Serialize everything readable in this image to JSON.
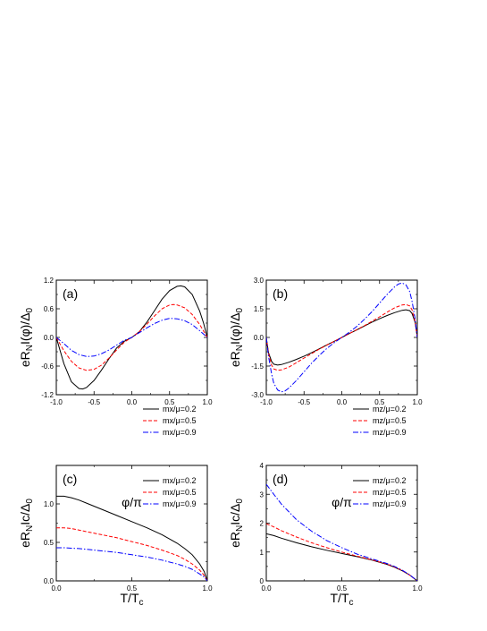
{
  "chart_data": [
    {
      "type": "line",
      "panel_label": "(a)",
      "xlabel": "φ/π",
      "ylabel": "eR_NI(φ)/Δ_0",
      "ylabel_parts": {
        "main": "eR",
        "sub1": "N",
        "mid": "I(φ)/Δ",
        "sub2": "0"
      },
      "xlim": [
        -1.0,
        1.0
      ],
      "ylim": [
        -1.2,
        1.2
      ],
      "xticks": [
        "-1.0",
        "-0.5",
        "0.0",
        "0.5",
        "1.0"
      ],
      "xtick_values": [
        -1.0,
        -0.5,
        0.0,
        0.5,
        1.0
      ],
      "yticks": [
        "-1.2",
        "-0.6",
        "0.0",
        "0.6",
        "1.2"
      ],
      "ytick_values": [
        -1.2,
        -0.6,
        0.0,
        0.6,
        1.2
      ],
      "legend_position": "lower-right",
      "series": [
        {
          "name": "mx/μ=0.2",
          "color": "#000000",
          "dash": "solid",
          "x": [
            -1.0,
            -0.9,
            -0.8,
            -0.7,
            -0.65,
            -0.6,
            -0.5,
            -0.4,
            -0.3,
            -0.2,
            -0.1,
            0.0,
            0.1,
            0.2,
            0.3,
            0.4,
            0.5,
            0.6,
            0.65,
            0.7,
            0.8,
            0.9,
            0.95,
            1.0
          ],
          "y": [
            0.0,
            -0.55,
            -0.93,
            -1.07,
            -1.08,
            -1.05,
            -0.9,
            -0.68,
            -0.44,
            -0.22,
            -0.08,
            0.0,
            0.12,
            0.32,
            0.56,
            0.8,
            0.98,
            1.07,
            1.08,
            1.06,
            0.9,
            0.55,
            0.3,
            0.0
          ]
        },
        {
          "name": "mx/μ=0.5",
          "color": "#ff0000",
          "dash": "dashed",
          "x": [
            -1.0,
            -0.9,
            -0.8,
            -0.7,
            -0.6,
            -0.5,
            -0.4,
            -0.3,
            -0.2,
            -0.1,
            0.0,
            0.1,
            0.2,
            0.3,
            0.4,
            0.5,
            0.55,
            0.6,
            0.7,
            0.8,
            0.9,
            1.0
          ],
          "y": [
            0.0,
            -0.28,
            -0.5,
            -0.64,
            -0.69,
            -0.67,
            -0.58,
            -0.43,
            -0.26,
            -0.1,
            0.0,
            0.12,
            0.28,
            0.45,
            0.6,
            0.68,
            0.69,
            0.68,
            0.62,
            0.48,
            0.27,
            0.0
          ]
        },
        {
          "name": "mx/μ=0.9",
          "color": "#0000ff",
          "dash": "dashdot",
          "x": [
            -1.0,
            -0.9,
            -0.8,
            -0.7,
            -0.6,
            -0.5,
            -0.4,
            -0.3,
            -0.2,
            -0.1,
            0.0,
            0.1,
            0.2,
            0.3,
            0.4,
            0.5,
            0.6,
            0.7,
            0.8,
            0.9,
            1.0
          ],
          "y": [
            0.0,
            -0.13,
            -0.27,
            -0.36,
            -0.4,
            -0.39,
            -0.34,
            -0.26,
            -0.16,
            -0.06,
            0.0,
            0.1,
            0.2,
            0.29,
            0.36,
            0.4,
            0.39,
            0.35,
            0.27,
            0.14,
            0.0
          ]
        }
      ]
    },
    {
      "type": "line",
      "panel_label": "(b)",
      "xlabel": "φ/π",
      "ylabel": "eR_NI(φ)/Δ_0",
      "ylabel_parts": {
        "main": "eR",
        "sub1": "N",
        "mid": "I(φ)/Δ",
        "sub2": "0"
      },
      "xlim": [
        -1.0,
        1.0
      ],
      "ylim": [
        -3.0,
        3.0
      ],
      "xticks": [
        "-1.0",
        "-0.5",
        "0.0",
        "0.5",
        "1.0"
      ],
      "xtick_values": [
        -1.0,
        -0.5,
        0.0,
        0.5,
        1.0
      ],
      "yticks": [
        "-3.0",
        "-1.5",
        "0.0",
        "1.5",
        "3.0"
      ],
      "ytick_values": [
        -3.0,
        -1.5,
        0.0,
        1.5,
        3.0
      ],
      "legend_position": "lower-right",
      "series": [
        {
          "name": "mz/μ=0.2",
          "color": "#000000",
          "dash": "solid",
          "x": [
            -1.0,
            -0.97,
            -0.93,
            -0.9,
            -0.85,
            -0.8,
            -0.7,
            -0.6,
            -0.5,
            -0.4,
            -0.3,
            -0.2,
            -0.1,
            0.0,
            0.1,
            0.2,
            0.3,
            0.4,
            0.5,
            0.6,
            0.7,
            0.8,
            0.85,
            0.9,
            0.93,
            0.97,
            1.0
          ],
          "y": [
            0.0,
            -0.8,
            -1.25,
            -1.4,
            -1.45,
            -1.42,
            -1.3,
            -1.15,
            -0.98,
            -0.8,
            -0.6,
            -0.4,
            -0.2,
            0.0,
            0.2,
            0.4,
            0.6,
            0.8,
            0.98,
            1.15,
            1.3,
            1.42,
            1.45,
            1.4,
            1.25,
            0.8,
            0.0
          ]
        },
        {
          "name": "mz/μ=0.5",
          "color": "#ff0000",
          "dash": "dashed",
          "x": [
            -1.0,
            -0.97,
            -0.93,
            -0.9,
            -0.85,
            -0.8,
            -0.7,
            -0.6,
            -0.5,
            -0.4,
            -0.3,
            -0.2,
            -0.1,
            0.0,
            0.1,
            0.2,
            0.3,
            0.4,
            0.5,
            0.6,
            0.7,
            0.8,
            0.85,
            0.9,
            0.93,
            0.97,
            1.0
          ],
          "y": [
            0.0,
            -0.85,
            -1.45,
            -1.65,
            -1.72,
            -1.7,
            -1.55,
            -1.32,
            -1.08,
            -0.85,
            -0.62,
            -0.41,
            -0.2,
            0.0,
            0.2,
            0.41,
            0.62,
            0.85,
            1.08,
            1.32,
            1.55,
            1.7,
            1.72,
            1.65,
            1.45,
            0.85,
            0.0
          ]
        },
        {
          "name": "mz/μ=0.9",
          "color": "#0000ff",
          "dash": "dashdot",
          "x": [
            -1.0,
            -0.97,
            -0.93,
            -0.9,
            -0.85,
            -0.8,
            -0.75,
            -0.7,
            -0.6,
            -0.5,
            -0.4,
            -0.3,
            -0.2,
            -0.1,
            0.0,
            0.1,
            0.2,
            0.3,
            0.4,
            0.5,
            0.6,
            0.7,
            0.75,
            0.8,
            0.85,
            0.9,
            0.93,
            0.97,
            1.0
          ],
          "y": [
            0.0,
            -1.0,
            -1.9,
            -2.4,
            -2.75,
            -2.85,
            -2.8,
            -2.65,
            -2.25,
            -1.8,
            -1.35,
            -0.95,
            -0.58,
            -0.27,
            0.0,
            0.27,
            0.58,
            0.95,
            1.35,
            1.8,
            2.25,
            2.65,
            2.8,
            2.85,
            2.75,
            2.4,
            1.9,
            1.0,
            0.0
          ]
        }
      ]
    },
    {
      "type": "line",
      "panel_label": "(c)",
      "xlabel": "T/T_c",
      "xlabel_parts": {
        "main": "T/T",
        "sub": "c"
      },
      "ylabel": "eR_NI_c/Δ_0",
      "ylabel_parts": {
        "main": "eR",
        "sub1": "N",
        "mid": "Ic/Δ",
        "sub2": "0"
      },
      "xlim": [
        0.0,
        1.0
      ],
      "ylim": [
        0.0,
        1.5
      ],
      "xticks": [
        "0.0",
        "0.5",
        "1.0"
      ],
      "xtick_values": [
        0.0,
        0.5,
        1.0
      ],
      "yticks": [
        "0.0",
        "0.5",
        "1.0"
      ],
      "ytick_values": [
        0.0,
        0.5,
        1.0
      ],
      "legend_position": "top-right",
      "series": [
        {
          "name": "mx/μ=0.2",
          "color": "#000000",
          "dash": "solid",
          "x": [
            0.0,
            0.05,
            0.1,
            0.15,
            0.2,
            0.3,
            0.4,
            0.5,
            0.6,
            0.7,
            0.8,
            0.85,
            0.9,
            0.95,
            0.98,
            1.0
          ],
          "y": [
            1.1,
            1.1,
            1.08,
            1.05,
            1.01,
            0.93,
            0.85,
            0.77,
            0.69,
            0.6,
            0.49,
            0.42,
            0.34,
            0.22,
            0.12,
            0.0
          ]
        },
        {
          "name": "mx/μ=0.5",
          "color": "#ff0000",
          "dash": "dashed",
          "x": [
            0.0,
            0.05,
            0.1,
            0.15,
            0.2,
            0.3,
            0.4,
            0.5,
            0.6,
            0.7,
            0.8,
            0.85,
            0.9,
            0.95,
            0.98,
            1.0
          ],
          "y": [
            0.69,
            0.69,
            0.68,
            0.66,
            0.64,
            0.6,
            0.56,
            0.51,
            0.46,
            0.4,
            0.33,
            0.28,
            0.22,
            0.14,
            0.07,
            0.0
          ]
        },
        {
          "name": "mx/μ=0.9",
          "color": "#0000ff",
          "dash": "dashdot",
          "x": [
            0.0,
            0.05,
            0.1,
            0.15,
            0.2,
            0.3,
            0.4,
            0.5,
            0.6,
            0.7,
            0.8,
            0.85,
            0.9,
            0.95,
            0.98,
            1.0
          ],
          "y": [
            0.43,
            0.43,
            0.425,
            0.42,
            0.41,
            0.39,
            0.37,
            0.34,
            0.31,
            0.27,
            0.22,
            0.19,
            0.15,
            0.09,
            0.05,
            0.0
          ]
        }
      ]
    },
    {
      "type": "line",
      "panel_label": "(d)",
      "xlabel": "T/T_c",
      "xlabel_parts": {
        "main": "T/T",
        "sub": "c"
      },
      "ylabel": "eR_NI_c/Δ_0",
      "ylabel_parts": {
        "main": "eR",
        "sub1": "N",
        "mid": "Ic/Δ",
        "sub2": "0"
      },
      "xlim": [
        0.0,
        1.0
      ],
      "ylim": [
        0,
        4
      ],
      "xticks": [
        "0.0",
        "0.5",
        "1.0"
      ],
      "xtick_values": [
        0.0,
        0.5,
        1.0
      ],
      "yticks": [
        "0",
        "1",
        "2",
        "3",
        "4"
      ],
      "ytick_values": [
        0,
        1,
        2,
        3,
        4
      ],
      "legend_position": "top-right",
      "series": [
        {
          "name": "mz/μ=0.2",
          "color": "#000000",
          "dash": "solid",
          "x": [
            0.0,
            0.05,
            0.1,
            0.2,
            0.3,
            0.4,
            0.5,
            0.6,
            0.7,
            0.8,
            0.85,
            0.9,
            0.95,
            1.0
          ],
          "y": [
            1.63,
            1.57,
            1.48,
            1.32,
            1.18,
            1.06,
            0.95,
            0.84,
            0.72,
            0.57,
            0.47,
            0.35,
            0.2,
            0.0
          ]
        },
        {
          "name": "mz/μ=0.5",
          "color": "#ff0000",
          "dash": "dashed",
          "x": [
            0.0,
            0.05,
            0.1,
            0.2,
            0.3,
            0.4,
            0.5,
            0.6,
            0.7,
            0.8,
            0.85,
            0.9,
            0.95,
            1.0
          ],
          "y": [
            1.98,
            1.87,
            1.74,
            1.52,
            1.32,
            1.15,
            1.0,
            0.86,
            0.73,
            0.58,
            0.48,
            0.36,
            0.2,
            0.0
          ]
        },
        {
          "name": "mz/μ=0.9",
          "color": "#0000ff",
          "dash": "dashdot",
          "x": [
            0.0,
            0.05,
            0.1,
            0.2,
            0.3,
            0.4,
            0.5,
            0.6,
            0.7,
            0.8,
            0.85,
            0.9,
            0.95,
            1.0
          ],
          "y": [
            3.35,
            3.0,
            2.66,
            2.12,
            1.72,
            1.4,
            1.15,
            0.93,
            0.76,
            0.6,
            0.5,
            0.37,
            0.21,
            0.0
          ]
        }
      ]
    }
  ]
}
